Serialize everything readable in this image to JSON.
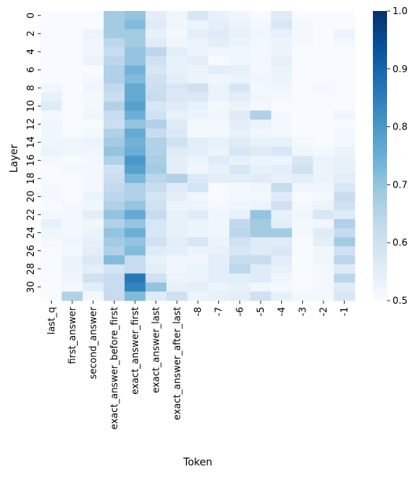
{
  "chart_data": {
    "type": "heatmap",
    "title": "",
    "xlabel": "Token",
    "ylabel": "Layer",
    "x_categories": [
      "last_q",
      "first_answer",
      "second_answer",
      "exact_answer_before_first",
      "exact_answer_first",
      "exact_answer_last",
      "exact_answer_after_last",
      "-8",
      "-7",
      "-6",
      "-5",
      "-4",
      "-3",
      "-2",
      "-1"
    ],
    "y_categories": [
      "0",
      "1",
      "2",
      "3",
      "4",
      "5",
      "6",
      "7",
      "8",
      "9",
      "10",
      "11",
      "12",
      "13",
      "14",
      "15",
      "16",
      "17",
      "18",
      "19",
      "20",
      "21",
      "22",
      "23",
      "24",
      "25",
      "26",
      "27",
      "28",
      "29",
      "30",
      "31"
    ],
    "y_tick_labels": [
      "0",
      "2",
      "4",
      "6",
      "8",
      "10",
      "12",
      "14",
      "16",
      "18",
      "20",
      "22",
      "24",
      "26",
      "28",
      "30"
    ],
    "colorbar": {
      "min": 0.5,
      "max": 1.0,
      "ticks": [
        "0.5",
        "0.6",
        "0.7",
        "0.8",
        "0.9",
        "1.0"
      ],
      "colormap": "Blues"
    },
    "values": [
      [
        0.5,
        0.5,
        0.5,
        0.68,
        0.7,
        0.55,
        0.52,
        0.58,
        0.54,
        0.52,
        0.5,
        0.56,
        0.5,
        0.5,
        0.5
      ],
      [
        0.5,
        0.5,
        0.5,
        0.68,
        0.72,
        0.56,
        0.52,
        0.53,
        0.55,
        0.53,
        0.51,
        0.58,
        0.51,
        0.5,
        0.5
      ],
      [
        0.5,
        0.5,
        0.53,
        0.68,
        0.68,
        0.54,
        0.51,
        0.55,
        0.56,
        0.54,
        0.52,
        0.54,
        0.51,
        0.5,
        0.53
      ],
      [
        0.5,
        0.5,
        0.52,
        0.64,
        0.68,
        0.56,
        0.52,
        0.53,
        0.55,
        0.53,
        0.51,
        0.53,
        0.51,
        0.5,
        0.51
      ],
      [
        0.5,
        0.5,
        0.52,
        0.62,
        0.7,
        0.64,
        0.55,
        0.53,
        0.52,
        0.52,
        0.51,
        0.53,
        0.5,
        0.5,
        0.5
      ],
      [
        0.5,
        0.5,
        0.53,
        0.64,
        0.7,
        0.6,
        0.54,
        0.55,
        0.5,
        0.52,
        0.51,
        0.54,
        0.5,
        0.5,
        0.5
      ],
      [
        0.5,
        0.5,
        0.5,
        0.66,
        0.74,
        0.58,
        0.54,
        0.53,
        0.55,
        0.54,
        0.51,
        0.53,
        0.5,
        0.5,
        0.5
      ],
      [
        0.5,
        0.5,
        0.51,
        0.66,
        0.72,
        0.6,
        0.55,
        0.53,
        0.52,
        0.53,
        0.52,
        0.53,
        0.5,
        0.5,
        0.5
      ],
      [
        0.52,
        0.5,
        0.52,
        0.63,
        0.76,
        0.61,
        0.58,
        0.6,
        0.53,
        0.58,
        0.51,
        0.52,
        0.5,
        0.51,
        0.5
      ],
      [
        0.54,
        0.5,
        0.51,
        0.61,
        0.76,
        0.62,
        0.57,
        0.57,
        0.53,
        0.55,
        0.52,
        0.51,
        0.5,
        0.5,
        0.5
      ],
      [
        0.56,
        0.5,
        0.51,
        0.66,
        0.78,
        0.58,
        0.56,
        0.54,
        0.51,
        0.53,
        0.51,
        0.5,
        0.5,
        0.5,
        0.5
      ],
      [
        0.51,
        0.5,
        0.52,
        0.62,
        0.75,
        0.6,
        0.54,
        0.53,
        0.52,
        0.56,
        0.66,
        0.51,
        0.5,
        0.5,
        0.52
      ],
      [
        0.52,
        0.5,
        0.5,
        0.61,
        0.7,
        0.66,
        0.56,
        0.51,
        0.51,
        0.55,
        0.53,
        0.51,
        0.5,
        0.5,
        0.5
      ],
      [
        0.52,
        0.5,
        0.51,
        0.66,
        0.76,
        0.62,
        0.57,
        0.51,
        0.51,
        0.54,
        0.52,
        0.51,
        0.5,
        0.5,
        0.51
      ],
      [
        0.52,
        0.52,
        0.53,
        0.68,
        0.74,
        0.66,
        0.6,
        0.55,
        0.54,
        0.56,
        0.54,
        0.54,
        0.51,
        0.5,
        0.51
      ],
      [
        0.53,
        0.52,
        0.52,
        0.7,
        0.75,
        0.66,
        0.56,
        0.55,
        0.53,
        0.58,
        0.56,
        0.58,
        0.52,
        0.51,
        0.53
      ],
      [
        0.51,
        0.5,
        0.51,
        0.66,
        0.8,
        0.67,
        0.55,
        0.53,
        0.56,
        0.54,
        0.53,
        0.53,
        0.58,
        0.53,
        0.54
      ],
      [
        0.5,
        0.51,
        0.51,
        0.6,
        0.78,
        0.68,
        0.55,
        0.52,
        0.54,
        0.58,
        0.54,
        0.55,
        0.6,
        0.53,
        0.54
      ],
      [
        0.5,
        0.5,
        0.51,
        0.61,
        0.73,
        0.64,
        0.66,
        0.57,
        0.55,
        0.55,
        0.56,
        0.54,
        0.55,
        0.53,
        0.55
      ],
      [
        0.51,
        0.5,
        0.51,
        0.63,
        0.66,
        0.62,
        0.56,
        0.59,
        0.5,
        0.51,
        0.52,
        0.62,
        0.52,
        0.52,
        0.58
      ],
      [
        0.51,
        0.5,
        0.53,
        0.64,
        0.66,
        0.59,
        0.55,
        0.52,
        0.5,
        0.51,
        0.51,
        0.56,
        0.5,
        0.51,
        0.62
      ],
      [
        0.5,
        0.51,
        0.52,
        0.66,
        0.7,
        0.6,
        0.53,
        0.53,
        0.51,
        0.52,
        0.53,
        0.6,
        0.51,
        0.53,
        0.6
      ],
      [
        0.51,
        0.51,
        0.55,
        0.7,
        0.76,
        0.62,
        0.54,
        0.56,
        0.52,
        0.54,
        0.7,
        0.54,
        0.52,
        0.58,
        0.56
      ],
      [
        0.54,
        0.51,
        0.52,
        0.66,
        0.7,
        0.58,
        0.54,
        0.53,
        0.52,
        0.63,
        0.68,
        0.55,
        0.51,
        0.52,
        0.66
      ],
      [
        0.52,
        0.51,
        0.53,
        0.7,
        0.75,
        0.58,
        0.54,
        0.53,
        0.52,
        0.64,
        0.68,
        0.68,
        0.51,
        0.56,
        0.62
      ],
      [
        0.51,
        0.52,
        0.54,
        0.68,
        0.7,
        0.6,
        0.55,
        0.58,
        0.53,
        0.6,
        0.56,
        0.56,
        0.5,
        0.55,
        0.68
      ],
      [
        0.5,
        0.51,
        0.55,
        0.66,
        0.72,
        0.56,
        0.55,
        0.53,
        0.54,
        0.58,
        0.56,
        0.58,
        0.5,
        0.52,
        0.6
      ],
      [
        0.5,
        0.53,
        0.57,
        0.72,
        0.62,
        0.54,
        0.52,
        0.52,
        0.55,
        0.62,
        0.62,
        0.55,
        0.5,
        0.52,
        0.64
      ],
      [
        0.5,
        0.53,
        0.55,
        0.59,
        0.62,
        0.55,
        0.52,
        0.53,
        0.55,
        0.64,
        0.56,
        0.54,
        0.5,
        0.51,
        0.56
      ],
      [
        0.5,
        0.52,
        0.6,
        0.62,
        0.86,
        0.6,
        0.53,
        0.53,
        0.55,
        0.55,
        0.56,
        0.52,
        0.5,
        0.51,
        0.64
      ],
      [
        0.5,
        0.51,
        0.55,
        0.62,
        0.84,
        0.7,
        0.54,
        0.55,
        0.53,
        0.54,
        0.52,
        0.51,
        0.5,
        0.51,
        0.56
      ],
      [
        0.5,
        0.66,
        0.51,
        0.62,
        0.72,
        0.56,
        0.6,
        0.53,
        0.54,
        0.55,
        0.6,
        0.54,
        0.51,
        0.51,
        0.58
      ]
    ]
  }
}
